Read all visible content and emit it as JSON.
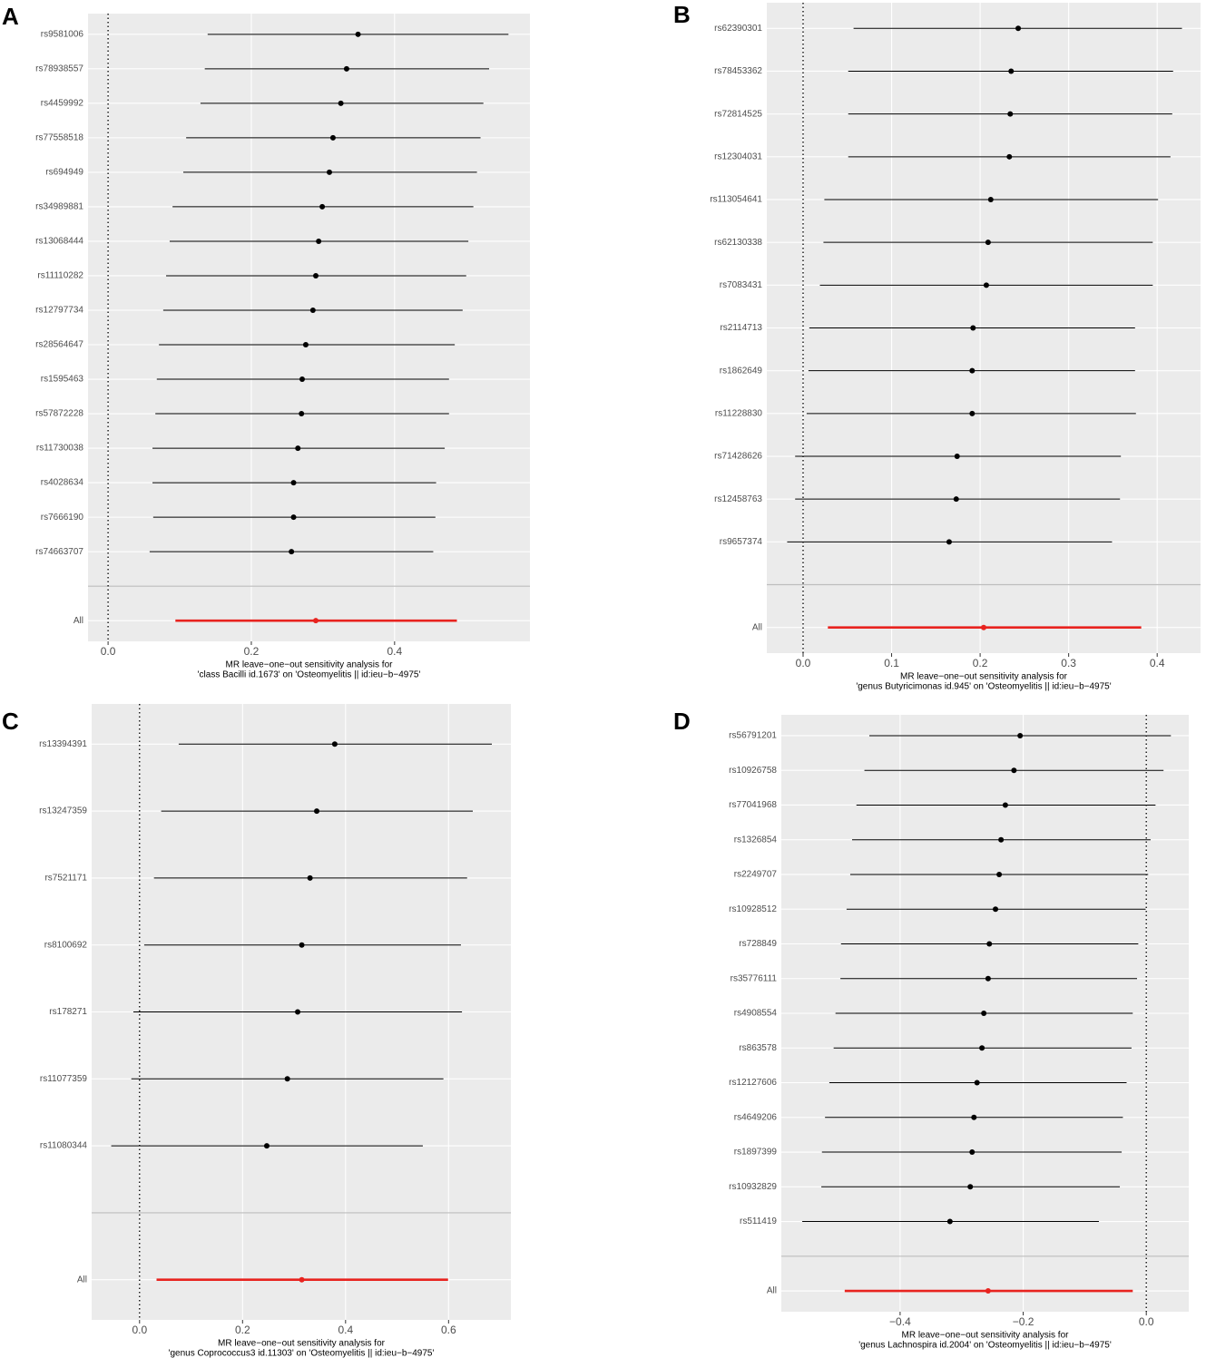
{
  "chart_data": [
    {
      "type": "forest",
      "panel": "A",
      "xlabel": [
        "MR leave−one−out sensitivity analysis for",
        "'class Bacilli id.1673' on 'Osteomyelitis || id:ieu−b−4975'"
      ],
      "categories": [
        "rs9581006",
        "rs78938557",
        "rs4459992",
        "rs77558518",
        "rs694949",
        "rs34989881",
        "rs13068444",
        "rs11110282",
        "rs12797734",
        "rs28564647",
        "rs1595463",
        "rs57872228",
        "rs11730038",
        "rs4028634",
        "rs7666190",
        "rs74663707",
        "All"
      ],
      "values": [
        0.349,
        0.333,
        0.325,
        0.314,
        0.309,
        0.299,
        0.294,
        0.29,
        0.286,
        0.276,
        0.271,
        0.27,
        0.265,
        0.259,
        0.259,
        0.256,
        0.29
      ],
      "lower": [
        0.139,
        0.135,
        0.129,
        0.109,
        0.105,
        0.09,
        0.086,
        0.081,
        0.077,
        0.071,
        0.068,
        0.066,
        0.062,
        0.062,
        0.063,
        0.058,
        0.094
      ],
      "upper": [
        0.559,
        0.532,
        0.524,
        0.52,
        0.515,
        0.51,
        0.503,
        0.5,
        0.495,
        0.484,
        0.476,
        0.476,
        0.47,
        0.458,
        0.457,
        0.454,
        0.487
      ],
      "xlim": [
        -0.028,
        0.589
      ],
      "xticks": [
        {
          "value": 0,
          "label": "0.0"
        },
        0.2,
        0.4
      ],
      "vline": 0,
      "color": "#000000",
      "summary_color": "#e8231f",
      "grid": true
    },
    {
      "type": "forest",
      "panel": "B",
      "xlabel": [
        "MR leave−one−out sensitivity analysis for",
        "'genus Butyricimonas id.945' on 'Osteomyelitis || id:ieu−b−4975'"
      ],
      "categories": [
        "rs62390301",
        "rs78453362",
        "rs72814525",
        "rs12304031",
        "rs113054641",
        "rs62130338",
        "rs7083431",
        "rs2114713",
        "rs1862649",
        "rs11228830",
        "rs71428626",
        "rs12458763",
        "rs9657374",
        "All"
      ],
      "values": [
        0.243,
        0.235,
        0.234,
        0.233,
        0.212,
        0.209,
        0.207,
        0.192,
        0.191,
        0.191,
        0.174,
        0.173,
        0.165,
        0.204
      ],
      "lower": [
        0.057,
        0.051,
        0.051,
        0.051,
        0.024,
        0.023,
        0.019,
        0.007,
        0.006,
        0.004,
        -0.009,
        -0.009,
        -0.018,
        0.028
      ],
      "upper": [
        0.428,
        0.418,
        0.417,
        0.415,
        0.401,
        0.395,
        0.395,
        0.375,
        0.375,
        0.376,
        0.359,
        0.358,
        0.349,
        0.382
      ],
      "xlim": [
        -0.041,
        0.449
      ],
      "xticks": [
        {
          "value": 0,
          "label": "0.0"
        },
        0.1,
        0.2,
        0.3,
        0.4
      ],
      "vline": 0,
      "color": "#000000",
      "summary_color": "#e8231f",
      "grid": true
    },
    {
      "type": "forest",
      "panel": "C",
      "xlabel": [
        "MR leave−one−out sensitivity analysis for",
        "'genus Coprococcus3 id.11303' on 'Osteomyelitis || id:ieu−b−4975'"
      ],
      "categories": [
        "rs13394391",
        "rs13247359",
        "rs7521171",
        "rs8100692",
        "rs178271",
        "rs11077359",
        "rs11080344",
        "All"
      ],
      "values": [
        0.379,
        0.344,
        0.331,
        0.315,
        0.307,
        0.287,
        0.247,
        0.315
      ],
      "lower": [
        0.076,
        0.042,
        0.028,
        0.009,
        -0.012,
        -0.016,
        -0.055,
        0.033
      ],
      "upper": [
        0.684,
        0.647,
        0.636,
        0.624,
        0.626,
        0.59,
        0.55,
        0.599
      ],
      "xlim": [
        -0.093,
        0.721
      ],
      "xticks": [
        {
          "value": 0,
          "label": "0.0"
        },
        0.2,
        0.4,
        0.6
      ],
      "vline": 0,
      "color": "#000000",
      "summary_color": "#e8231f",
      "grid": true
    },
    {
      "type": "forest",
      "panel": "D",
      "xlabel": [
        "MR leave−one−out sensitivity analysis for",
        "'genus Lachnospira id.2004' on 'Osteomyelitis || id:ieu−b−4975'"
      ],
      "categories": [
        "rs56791201",
        "rs10926758",
        "rs77041968",
        "rs1326854",
        "rs2249707",
        "rs10928512",
        "rs728849",
        "rs35776111",
        "rs4908554",
        "rs863578",
        "rs12127606",
        "rs4649206",
        "rs1897399",
        "rs10932829",
        "rs511419",
        "All"
      ],
      "values": [
        -0.205,
        -0.215,
        -0.229,
        -0.236,
        -0.239,
        -0.245,
        -0.255,
        -0.257,
        -0.264,
        -0.267,
        -0.275,
        -0.28,
        -0.283,
        -0.286,
        -0.319,
        -0.257
      ],
      "lower": [
        -0.45,
        -0.458,
        -0.471,
        -0.478,
        -0.481,
        -0.487,
        -0.496,
        -0.497,
        -0.505,
        -0.508,
        -0.515,
        -0.522,
        -0.527,
        -0.528,
        -0.559,
        -0.49
      ],
      "upper": [
        0.04,
        0.028,
        0.015,
        0.007,
        0.003,
        -0.001,
        -0.013,
        -0.015,
        -0.022,
        -0.024,
        -0.032,
        -0.038,
        -0.04,
        -0.043,
        -0.077,
        -0.022
      ],
      "xlim": [
        -0.593,
        0.069
      ],
      "xticks": [
        {
          "value": -0.4,
          "label": "−0.4"
        },
        {
          "value": -0.2,
          "label": "−0.2"
        },
        {
          "value": 0,
          "label": "0.0"
        }
      ],
      "vline": 0,
      "color": "#000000",
      "summary_color": "#e8231f",
      "grid": true
    }
  ]
}
